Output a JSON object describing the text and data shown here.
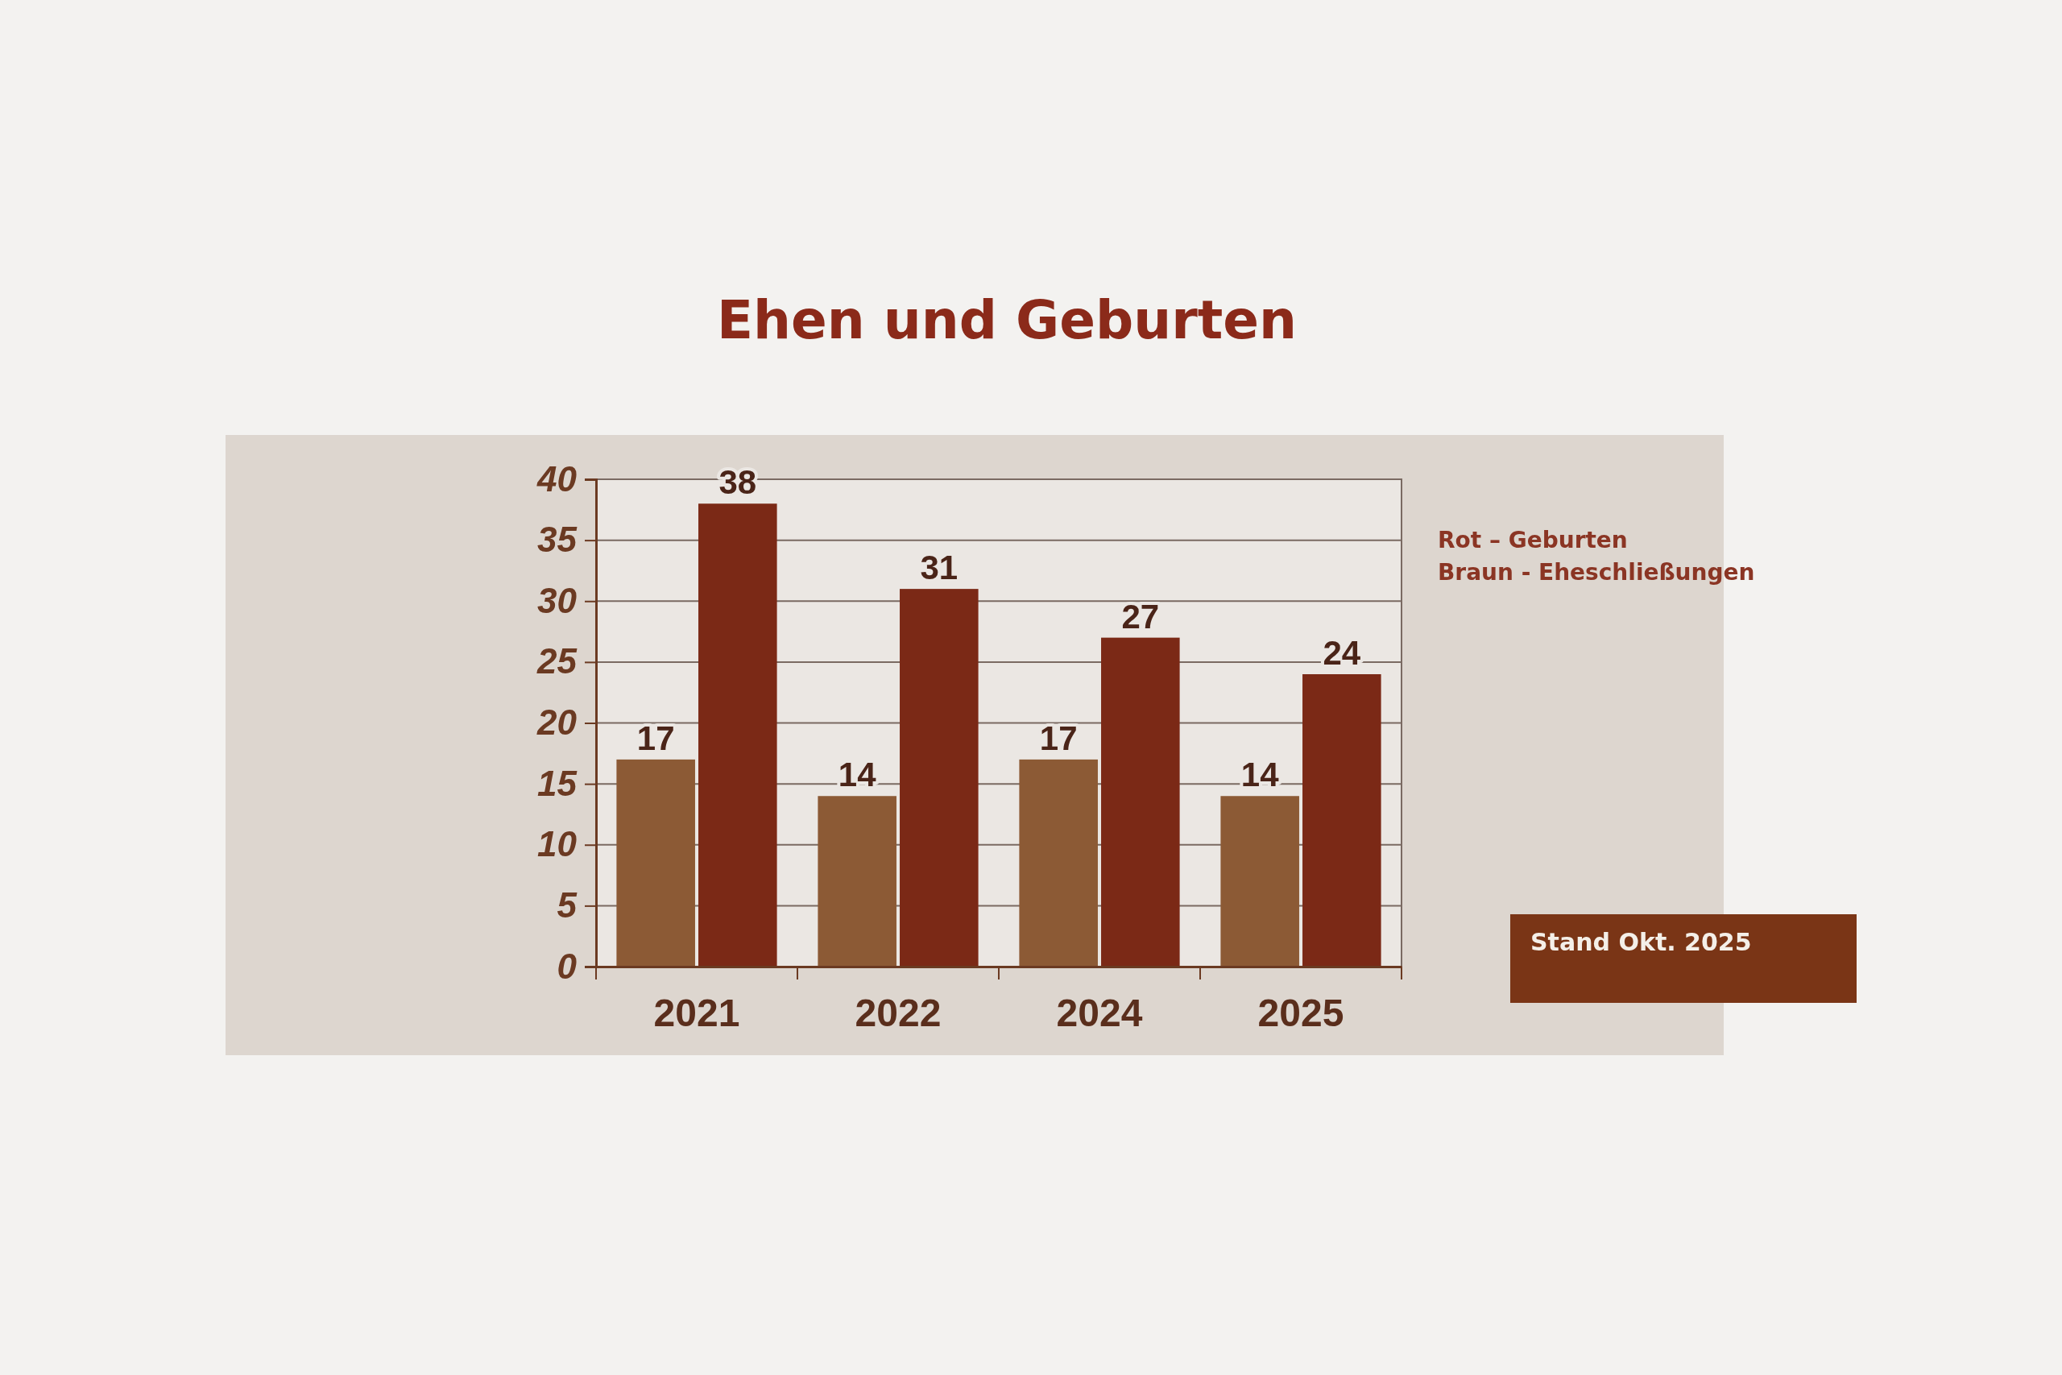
{
  "chart_data": {
    "type": "bar",
    "title": "Ehen und Geburten",
    "categories": [
      "2021",
      "2022",
      "2024",
      "2025"
    ],
    "series": [
      {
        "color": "#8c5a35",
        "values": [
          17,
          14,
          17,
          14
        ]
      },
      {
        "color": "#7b2916",
        "values": [
          38,
          31,
          27,
          24
        ]
      }
    ],
    "ylim": [
      0,
      40
    ],
    "yticks": [
      0,
      5,
      10,
      15,
      20,
      25,
      30,
      35,
      40
    ],
    "grid": "y",
    "data_labels": true,
    "annotations": [
      "Rot – Geburten",
      "Braun - Eheschließungen",
      "Stand Okt. 2025"
    ]
  }
}
